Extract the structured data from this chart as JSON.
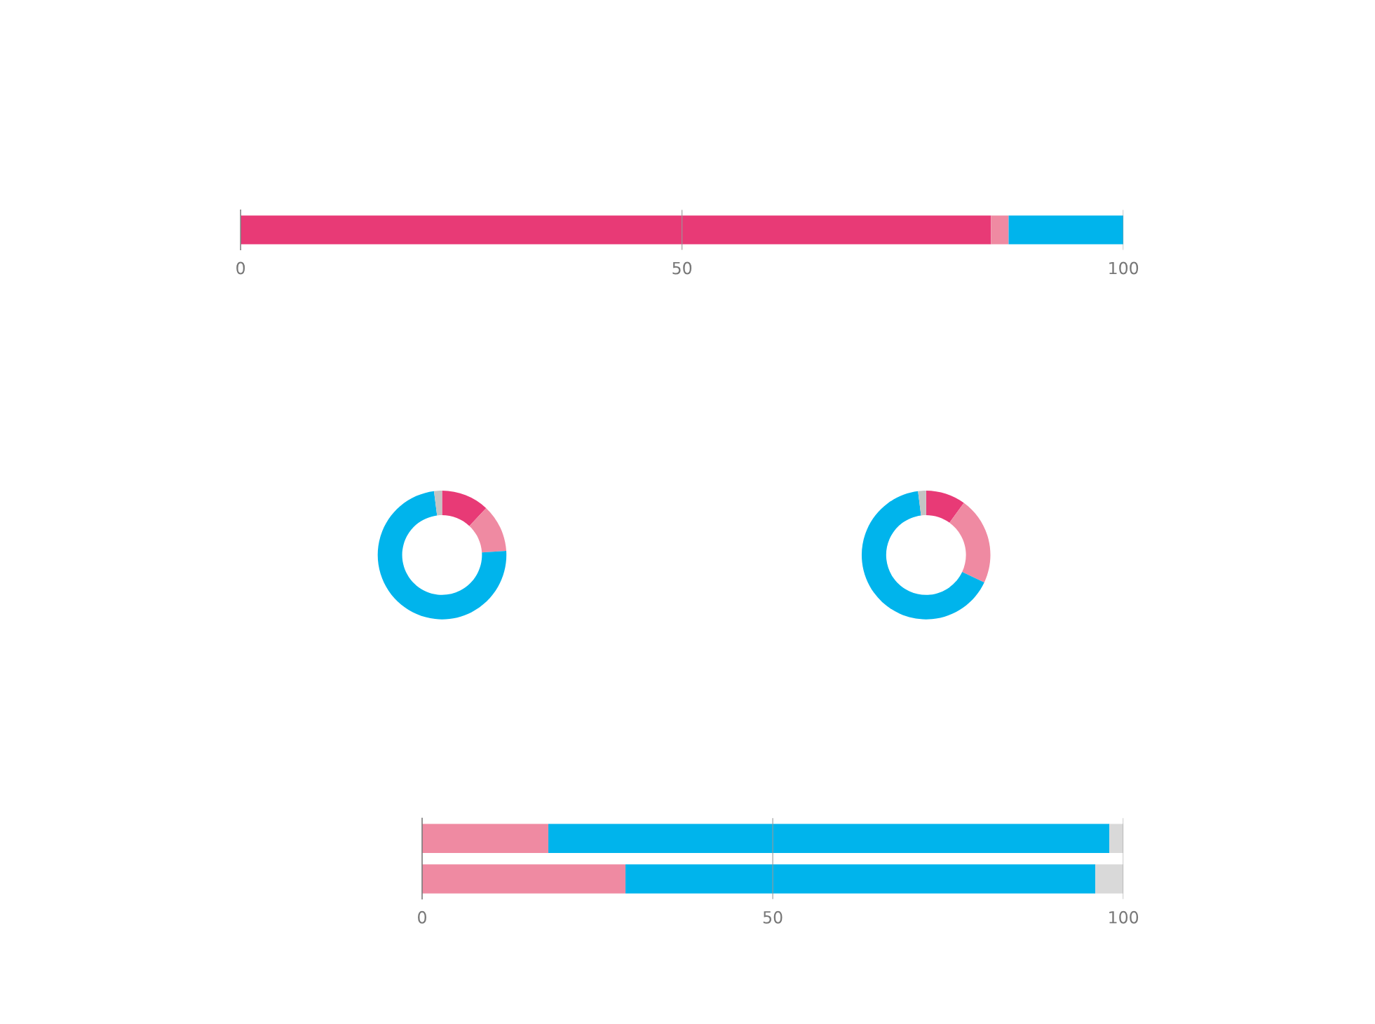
{
  "chart_data": [
    {
      "type": "bar",
      "orientation": "horizontal",
      "stacked": true,
      "categories": [
        null
      ],
      "series": [
        {
          "color": "#e83a76",
          "values": [
            85
          ]
        },
        {
          "color": "#ef8aa2",
          "values": [
            2
          ]
        },
        {
          "color": "#00b4ec",
          "values": [
            13
          ]
        }
      ],
      "xlim": [
        0,
        100
      ],
      "xticks": [
        0,
        50,
        100
      ],
      "grid": "x",
      "tick_labels": "x"
    },
    {
      "type": "donut",
      "categories": [
        null,
        null,
        null,
        null
      ],
      "values": [
        12,
        12,
        74,
        2
      ],
      "colors": [
        "#e83a76",
        "#ef8aa2",
        "#00b4ec",
        "#c4c4c4"
      ]
    },
    {
      "type": "donut",
      "categories": [
        null,
        null,
        null,
        null
      ],
      "values": [
        10,
        22,
        66,
        2
      ],
      "colors": [
        "#e83a76",
        "#ef8aa2",
        "#00b4ec",
        "#c4c4c4"
      ]
    },
    {
      "type": "bar",
      "orientation": "horizontal",
      "stacked": true,
      "categories": [
        null,
        null
      ],
      "series": [
        {
          "color": "#ef8aa2",
          "values": [
            18,
            29
          ]
        },
        {
          "color": "#00b4ec",
          "values": [
            80,
            67
          ]
        },
        {
          "color": "#d9d9d9",
          "values": [
            2,
            4
          ]
        }
      ],
      "xlim": [
        0,
        100
      ],
      "xticks": [
        0,
        50,
        100
      ],
      "grid": "x",
      "tick_labels": "x"
    }
  ]
}
